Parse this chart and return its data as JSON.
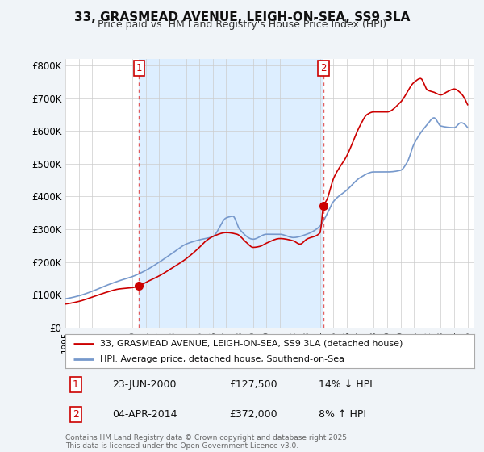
{
  "title": "33, GRASMEAD AVENUE, LEIGH-ON-SEA, SS9 3LA",
  "subtitle": "Price paid vs. HM Land Registry's House Price Index (HPI)",
  "background_color": "#f0f4f8",
  "plot_bg_color": "#ffffff",
  "shaded_bg_color": "#ddeeff",
  "red_line_color": "#cc0000",
  "blue_line_color": "#7799cc",
  "vline_color": "#dd4444",
  "sale1_x": 2000.5,
  "sale1_y": 127500,
  "sale1_label": "1",
  "sale2_x": 2014.25,
  "sale2_y": 372000,
  "sale2_label": "2",
  "legend_label_red": "33, GRASMEAD AVENUE, LEIGH-ON-SEA, SS9 3LA (detached house)",
  "legend_label_blue": "HPI: Average price, detached house, Southend-on-Sea",
  "annotation1_date": "23-JUN-2000",
  "annotation1_price": "£127,500",
  "annotation1_hpi": "14% ↓ HPI",
  "annotation2_date": "04-APR-2014",
  "annotation2_price": "£372,000",
  "annotation2_hpi": "8% ↑ HPI",
  "footer": "Contains HM Land Registry data © Crown copyright and database right 2025.\nThis data is licensed under the Open Government Licence v3.0.",
  "xmin": 1995.0,
  "xmax": 2025.5,
  "ylim": [
    0,
    820000
  ],
  "yticks": [
    0,
    100000,
    200000,
    300000,
    400000,
    500000,
    600000,
    700000,
    800000
  ],
  "ytick_labels": [
    "£0",
    "£100K",
    "£200K",
    "£300K",
    "£400K",
    "£500K",
    "£600K",
    "£700K",
    "£800K"
  ]
}
